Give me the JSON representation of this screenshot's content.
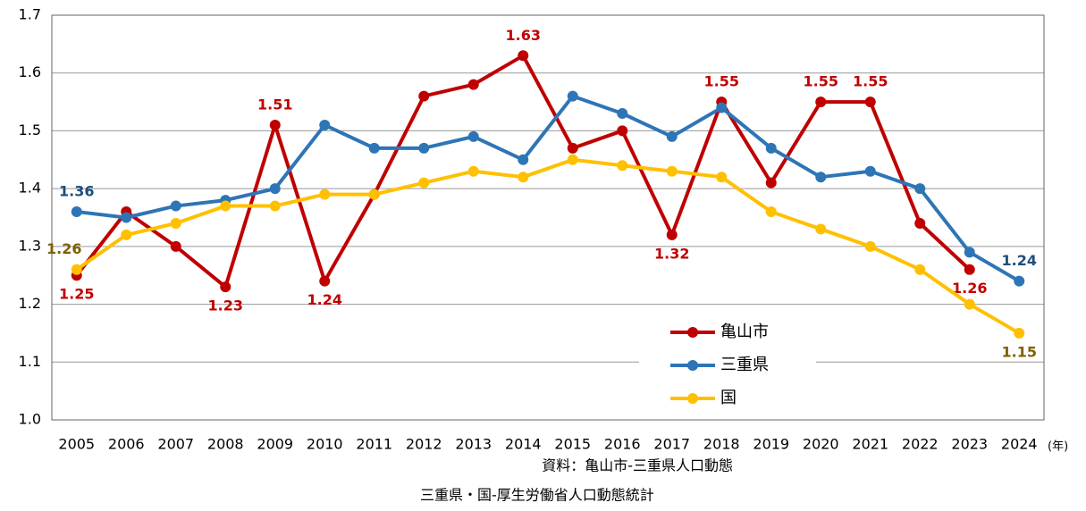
{
  "chart_data": {
    "type": "line",
    "categories": [
      "2005",
      "2006",
      "2007",
      "2008",
      "2009",
      "2010",
      "2011",
      "2012",
      "2013",
      "2014",
      "2015",
      "2016",
      "2017",
      "2018",
      "2019",
      "2020",
      "2021",
      "2022",
      "2023",
      "2024"
    ],
    "x_unit": "(年)",
    "series": [
      {
        "name": "亀山市",
        "color": "#c00000",
        "label_color": "#c00000",
        "values": [
          1.25,
          1.36,
          1.3,
          1.23,
          1.51,
          1.24,
          1.39,
          1.56,
          1.58,
          1.63,
          1.47,
          1.5,
          1.32,
          1.55,
          1.41,
          1.55,
          1.55,
          1.34,
          1.26,
          null
        ],
        "value_labels": [
          "1.25",
          null,
          null,
          "1.23",
          "1.51",
          "1.24",
          null,
          null,
          null,
          "1.63",
          null,
          null,
          "1.32",
          "1.55",
          null,
          "1.55",
          "1.55",
          null,
          "1.26",
          null
        ]
      },
      {
        "name": "三重県",
        "color": "#2e75b6",
        "label_color": "#1f4e79",
        "values": [
          1.36,
          1.35,
          1.37,
          1.38,
          1.4,
          1.51,
          1.47,
          1.47,
          1.49,
          1.45,
          1.56,
          1.53,
          1.49,
          1.54,
          1.47,
          1.42,
          1.43,
          1.4,
          1.29,
          1.24
        ],
        "value_labels": [
          "1.36",
          null,
          null,
          null,
          null,
          null,
          null,
          null,
          null,
          null,
          null,
          null,
          null,
          null,
          null,
          null,
          null,
          null,
          null,
          "1.24"
        ]
      },
      {
        "name": "国",
        "color": "#ffc000",
        "label_color": "#7f6000",
        "values": [
          1.26,
          1.32,
          1.34,
          1.37,
          1.37,
          1.39,
          1.39,
          1.41,
          1.43,
          1.42,
          1.45,
          1.44,
          1.43,
          1.42,
          1.36,
          1.33,
          1.3,
          1.26,
          1.2,
          1.15
        ],
        "value_labels": [
          "1.26",
          null,
          null,
          null,
          null,
          null,
          null,
          null,
          null,
          null,
          null,
          null,
          null,
          null,
          null,
          null,
          null,
          null,
          null,
          "1.15"
        ]
      }
    ],
    "ylim": [
      1.0,
      1.7
    ],
    "yticks": [
      {
        "value": 1,
        "label": "1.0"
      },
      1.1,
      1.2,
      1.3,
      1.4,
      1.5,
      1.6,
      1.7
    ],
    "grid": true,
    "notes": [
      "資料：亀山市-三重県人口動態",
      "三重県・国-厚生労働省人口動態統計"
    ]
  }
}
